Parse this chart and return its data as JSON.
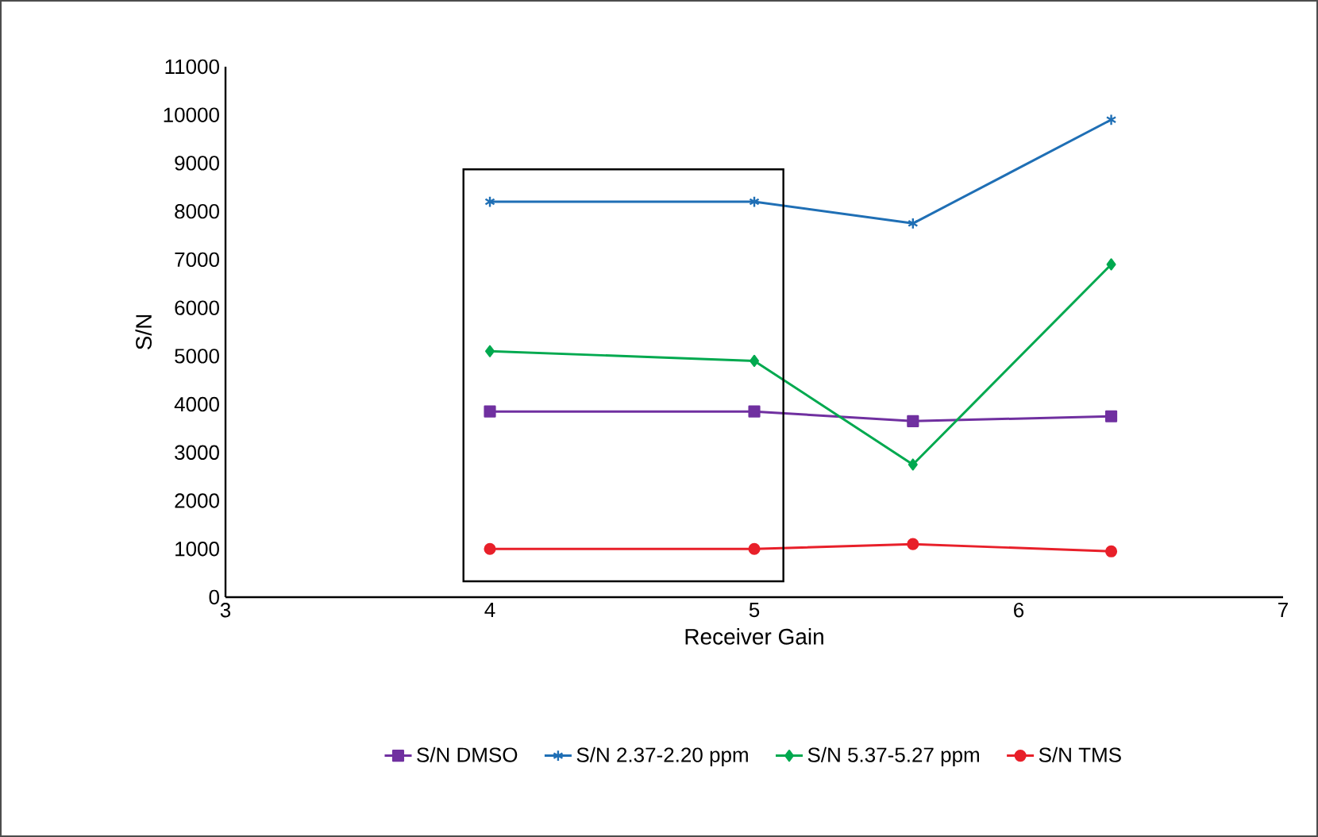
{
  "chart_data": {
    "type": "line",
    "xlabel": "Receiver Gain",
    "ylabel": "S/N",
    "xlim": [
      3,
      7
    ],
    "xticks": [
      3,
      4,
      5,
      6,
      7
    ],
    "ylim": [
      0,
      11000
    ],
    "yticks": [
      0,
      1000,
      2000,
      3000,
      4000,
      5000,
      6000,
      7000,
      8000,
      9000,
      10000,
      11000
    ],
    "x": [
      4,
      5,
      5.6,
      6.35
    ],
    "series": [
      {
        "name": "S/N DMSO",
        "color": "#7030a0",
        "marker": "square",
        "values": [
          3850,
          3850,
          3650,
          3750
        ]
      },
      {
        "name": "S/N 2.37-2.20 ppm",
        "color": "#1f6fb5",
        "marker": "cross",
        "values": [
          8200,
          8200,
          7750,
          9900
        ]
      },
      {
        "name": "S/N 5.37-5.27 ppm",
        "color": "#00a94f",
        "marker": "diamond",
        "values": [
          5100,
          4900,
          2750,
          6900
        ]
      },
      {
        "name": "S/N TMS",
        "color": "#e8202a",
        "marker": "circle",
        "values": [
          1000,
          1000,
          1100,
          950
        ]
      }
    ],
    "grid": false,
    "legend": "bottom",
    "line_style": "solid"
  }
}
